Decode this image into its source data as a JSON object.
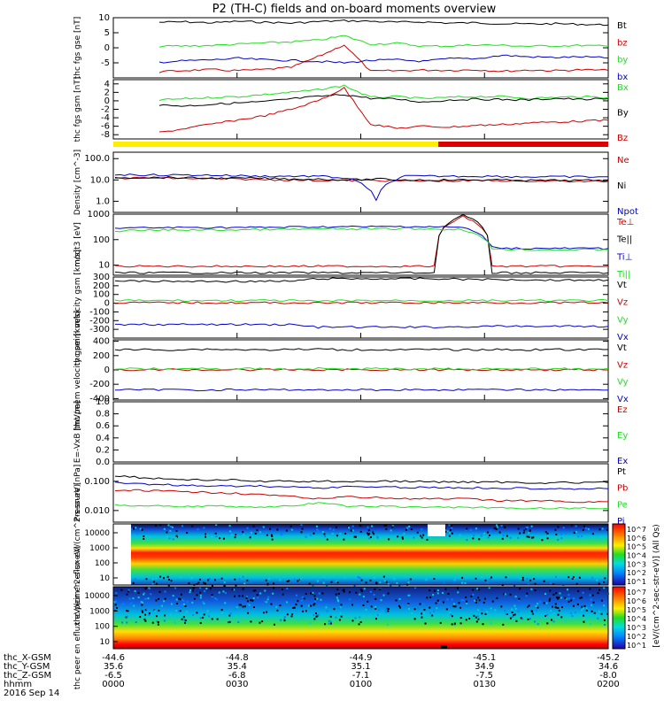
{
  "title": "P2 (TH-C) fields and on-board moments overview",
  "colors": {
    "black": "#000000",
    "red": "#cc0000",
    "green": "#22dd22",
    "blue": "#0000cc",
    "yellow": "#ffee00",
    "barred": "#dd0000"
  },
  "mode_bar": {
    "segments": [
      {
        "color": "yellow",
        "from": "0000",
        "to": "0116"
      },
      {
        "color": "red",
        "from": "0116",
        "to": "0200"
      }
    ]
  },
  "colorbar": {
    "label": "[eV/(cm^2-sec-str-eV)] (All Qs)",
    "ticks_top": [
      "10^7",
      "10^6",
      "10^5",
      "10^4",
      "10^3",
      "10^2",
      "10^1"
    ],
    "ticks_bottom": [
      "10^7",
      "10^6",
      "10^5",
      "10^4",
      "10^3",
      "10^2",
      "10^1"
    ]
  },
  "xaxis": {
    "rows": [
      {
        "label": "thc_X-GSM",
        "values": [
          "-44.6",
          "-44.8",
          "-44.9",
          "-45.1",
          "-45.2"
        ]
      },
      {
        "label": "thc_Y-GSM",
        "values": [
          "35.6",
          "35.4",
          "35.1",
          "34.9",
          "34.6"
        ]
      },
      {
        "label": "thc_Z-GSM",
        "values": [
          "-6.5",
          "-6.8",
          "-7.1",
          "-7.5",
          "-8.0"
        ]
      },
      {
        "label": "hhmm",
        "values": [
          "0000",
          "0030",
          "0100",
          "0130",
          "0200"
        ]
      }
    ],
    "date": "2016 Sep 14"
  },
  "chart_data": [
    {
      "type": "line",
      "ylabel": "thc fgs gse [nT]",
      "ylim": [
        -10,
        10
      ],
      "yticks": [
        "10",
        "5",
        "0",
        "-5"
      ],
      "series": [
        {
          "name": "Bt",
          "color": "black",
          "values": [
            8.5,
            8.6,
            8.3,
            8.8,
            8.5,
            8.2,
            8.7,
            9.0,
            8.8,
            8.5,
            8.6,
            8.2,
            8.3,
            8.0,
            7.9,
            8.0,
            7.8,
            7.6
          ]
        },
        {
          "name": "bz",
          "color": "red",
          "values": [
            -8.0,
            -7.5,
            -7.3,
            -7.6,
            -7.2,
            -6.5,
            -3.0,
            1.0,
            -7.8,
            -7.6,
            -7.4,
            -7.5,
            -7.3,
            -7.8,
            -7.4,
            -7.6,
            -7.3,
            -7.5
          ]
        },
        {
          "name": "by",
          "color": "green",
          "values": [
            0.5,
            0.6,
            0.8,
            1.2,
            1.6,
            2.0,
            2.5,
            4.0,
            1.2,
            1.5,
            0.5,
            0.6,
            1.0,
            0.8,
            0.5,
            0.6,
            0.8,
            0.5
          ]
        },
        {
          "name": "bx",
          "color": "blue",
          "values": [
            -4.8,
            -4.3,
            -4.0,
            -3.5,
            -4.0,
            -4.2,
            -4.5,
            -5.0,
            -4.2,
            -4.0,
            -4.5,
            -3.6,
            -3.6,
            -2.5,
            -3.0,
            -3.2,
            -3.0,
            -3.4
          ]
        }
      ]
    },
    {
      "type": "line",
      "ylabel": "thc fgs gsm [nT]",
      "ylim": [
        -9,
        5
      ],
      "yticks": [
        "4",
        "2",
        "0",
        "-2",
        "-4",
        "-6",
        "-8"
      ],
      "series": [
        {
          "name": "Bx",
          "color": "green",
          "values": [
            0.2,
            0.5,
            0.8,
            1.0,
            1.5,
            2.0,
            2.6,
            3.6,
            0.8,
            1.0,
            0.5,
            0.8,
            1.0,
            1.0,
            0.6,
            0.8,
            1.0,
            0.8
          ]
        },
        {
          "name": "By",
          "color": "black",
          "values": [
            -1.0,
            -1.2,
            -0.8,
            -0.5,
            -0.2,
            0.5,
            1.0,
            1.5,
            0.6,
            0.4,
            -0.3,
            0.2,
            0.4,
            0.3,
            0.2,
            0.6,
            0.3,
            0.5
          ]
        },
        {
          "name": "Bz",
          "color": "red",
          "values": [
            -7.5,
            -6.5,
            -5.5,
            -4.5,
            -3.5,
            -2.0,
            0.0,
            3.0,
            -5.5,
            -6.5,
            -6.0,
            -6.2,
            -5.8,
            -5.6,
            -5.2,
            -5.0,
            -4.8,
            -4.6
          ]
        }
      ]
    },
    {
      "type": "line",
      "ylabel": "Density [cm^-3]",
      "ylim": [
        0.3,
        200
      ],
      "log": true,
      "yticks": [
        "100.0",
        "10.0",
        "1.0"
      ],
      "series": [
        {
          "name": "Ne",
          "color": "red",
          "values": [
            12,
            12.5,
            12,
            11.5,
            11,
            10.5,
            10,
            9.5,
            9.5,
            9.5,
            9.0,
            9.0,
            9.0,
            9.5,
            9.0,
            9.0,
            8.5,
            8.5
          ]
        },
        {
          "name": "Ni",
          "color": "black",
          "values": [
            13,
            13,
            13,
            12,
            12,
            12,
            11,
            11,
            10,
            11,
            10,
            10,
            10,
            10,
            9.5,
            9.5,
            9.5,
            9.5
          ]
        },
        {
          "name": "Npot",
          "color": "blue",
          "values": [
            18,
            17,
            17,
            17,
            16,
            15,
            15,
            15,
            12,
            1.0,
            15,
            15,
            15,
            15,
            14,
            14,
            14,
            14
          ]
        }
      ]
    },
    {
      "type": "line",
      "ylabel": "moqt3 [eV]",
      "ylim": [
        4,
        1000
      ],
      "log": true,
      "yticks": [
        "1000",
        "100",
        "10"
      ],
      "series": [
        {
          "name": "Te⊥",
          "color": "red",
          "values": [
            9,
            9,
            9,
            9,
            9,
            9,
            9,
            9,
            9,
            9,
            9,
            9,
            800,
            9,
            9,
            9,
            9,
            9
          ]
        },
        {
          "name": "Te||",
          "color": "black",
          "values": [
            5,
            5,
            5,
            5,
            5,
            5,
            5,
            5,
            5,
            5,
            5,
            5,
            900,
            5,
            5,
            5,
            5,
            5
          ]
        },
        {
          "name": "Ti⊥",
          "color": "blue",
          "values": [
            280,
            290,
            300,
            300,
            300,
            300,
            310,
            320,
            320,
            320,
            330,
            320,
            300,
            50,
            45,
            45,
            45,
            45
          ]
        },
        {
          "name": "Ti||",
          "color": "green",
          "values": [
            220,
            230,
            240,
            240,
            240,
            250,
            250,
            260,
            260,
            260,
            270,
            260,
            250,
            45,
            40,
            40,
            40,
            40
          ]
        }
      ]
    },
    {
      "type": "line",
      "ylabel": "thc peim velocity gsm [km/s]",
      "ylim": [
        -400,
        300
      ],
      "yticks": [
        "300",
        "200",
        "100",
        "0",
        "-100",
        "-200",
        "-300"
      ],
      "series": [
        {
          "name": "Vt",
          "color": "black",
          "values": [
            260,
            250,
            250,
            250,
            250,
            250,
            250,
            280,
            280,
            280,
            280,
            280,
            275,
            270,
            270,
            265,
            265,
            265
          ]
        },
        {
          "name": "Vz",
          "color": "red",
          "values": [
            5,
            5,
            5,
            5,
            5,
            5,
            5,
            0,
            5,
            5,
            5,
            5,
            5,
            5,
            5,
            5,
            5,
            5
          ]
        },
        {
          "name": "Vy",
          "color": "green",
          "values": [
            30,
            30,
            30,
            30,
            30,
            30,
            30,
            20,
            30,
            30,
            30,
            30,
            30,
            30,
            30,
            30,
            30,
            30
          ]
        },
        {
          "name": "Vx",
          "color": "blue",
          "values": [
            -250,
            -245,
            -245,
            -245,
            -245,
            -245,
            -245,
            -275,
            -275,
            -275,
            -275,
            -275,
            -270,
            -265,
            -265,
            -265,
            -265,
            -265
          ]
        }
      ]
    },
    {
      "type": "line",
      "ylabel": "thc peem velocity gsm [km/s]",
      "ylim": [
        -420,
        420
      ],
      "yticks": [
        "400",
        "200",
        "0",
        "-200",
        "-400"
      ],
      "series": [
        {
          "name": "Vt",
          "color": "black",
          "values": [
            280,
            285,
            280,
            290,
            285,
            280,
            285,
            290,
            280,
            285,
            280,
            285,
            280,
            285,
            280,
            285,
            280,
            285
          ]
        },
        {
          "name": "Vz",
          "color": "red",
          "values": [
            5,
            0,
            5,
            0,
            5,
            0,
            5,
            0,
            5,
            0,
            5,
            0,
            5,
            0,
            5,
            0,
            5,
            0
          ]
        },
        {
          "name": "Vy",
          "color": "green",
          "values": [
            10,
            20,
            10,
            20,
            10,
            20,
            10,
            20,
            10,
            20,
            10,
            20,
            10,
            20,
            10,
            20,
            10,
            20
          ]
        },
        {
          "name": "Vx",
          "color": "blue",
          "values": [
            -275,
            -280,
            -275,
            -280,
            -275,
            -280,
            -275,
            -280,
            -275,
            -280,
            -275,
            -280,
            -275,
            -280,
            -275,
            -280,
            -275,
            -280
          ]
        }
      ]
    },
    {
      "type": "line",
      "ylabel": "E=-VxB [mV/m]",
      "ylim": [
        0,
        1
      ],
      "yticks": [
        "1.0",
        "0.8",
        "0.6",
        "0.4",
        "0.2",
        "0.0"
      ],
      "series": [
        {
          "name": "Ez",
          "color": "red",
          "values": []
        },
        {
          "name": "Ey",
          "color": "green",
          "values": []
        },
        {
          "name": "Ex",
          "color": "blue",
          "values": []
        }
      ]
    },
    {
      "type": "line",
      "ylabel": "Pressure [nPa]",
      "ylim": [
        0.004,
        0.4
      ],
      "log": true,
      "yticks": [
        "0.100",
        "0.010"
      ],
      "series": [
        {
          "name": "Pt",
          "color": "black",
          "values": [
            0.16,
            0.13,
            0.12,
            0.11,
            0.11,
            0.1,
            0.1,
            0.1,
            0.1,
            0.1,
            0.1,
            0.095,
            0.095,
            0.095,
            0.09,
            0.09,
            0.09,
            0.09
          ]
        },
        {
          "name": "Pb",
          "color": "red",
          "values": [
            0.05,
            0.048,
            0.045,
            0.042,
            0.04,
            0.035,
            0.03,
            0.025,
            0.03,
            0.028,
            0.025,
            0.025,
            0.025,
            0.022,
            0.022,
            0.021,
            0.02,
            0.02
          ]
        },
        {
          "name": "Pe",
          "color": "green",
          "values": [
            0.015,
            0.015,
            0.014,
            0.014,
            0.014,
            0.013,
            0.014,
            0.018,
            0.014,
            0.014,
            0.013,
            0.013,
            0.013,
            0.012,
            0.012,
            0.012,
            0.012,
            0.012
          ]
        },
        {
          "name": "Pi",
          "color": "blue",
          "values": [
            0.09,
            0.08,
            0.075,
            0.07,
            0.07,
            0.068,
            0.065,
            0.06,
            0.065,
            0.065,
            0.062,
            0.062,
            0.06,
            0.06,
            0.058,
            0.058,
            0.056,
            0.056
          ]
        }
      ]
    },
    {
      "type": "heatmap",
      "ylabel": "thc peir en eflux eV/(cm^2-s-sr-eV)",
      "yticks": [
        "10000",
        "1000",
        "100",
        "10"
      ]
    },
    {
      "type": "heatmap",
      "ylabel": "thc peer en eflux eV/(cm^2-s-sr-eV)",
      "yticks": [
        "10000",
        "1000",
        "100",
        "10"
      ]
    }
  ]
}
